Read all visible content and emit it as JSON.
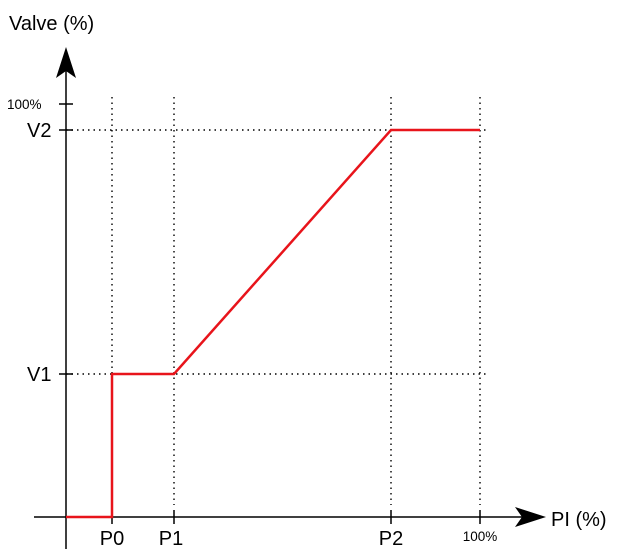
{
  "chart_data": {
    "type": "line",
    "title": "",
    "xlabel": "PI (%)",
    "ylabel": "Valve (%)",
    "x_ticks": [
      "P0",
      "P1",
      "P2",
      "100%"
    ],
    "y_ticks": [
      "V1",
      "V2",
      "100%"
    ],
    "series": [
      {
        "points": [
          {
            "x": "0",
            "y": "0"
          },
          {
            "x": "P0",
            "y": "0"
          },
          {
            "x": "P0",
            "y": "V1"
          },
          {
            "x": "P1",
            "y": "V1"
          },
          {
            "x": "P2",
            "y": "V2"
          },
          {
            "x": "100%",
            "y": "V2"
          }
        ],
        "color": "#e8141b"
      }
    ],
    "grid": "dotted guide lines at tick positions",
    "axis_color": "#000000"
  }
}
